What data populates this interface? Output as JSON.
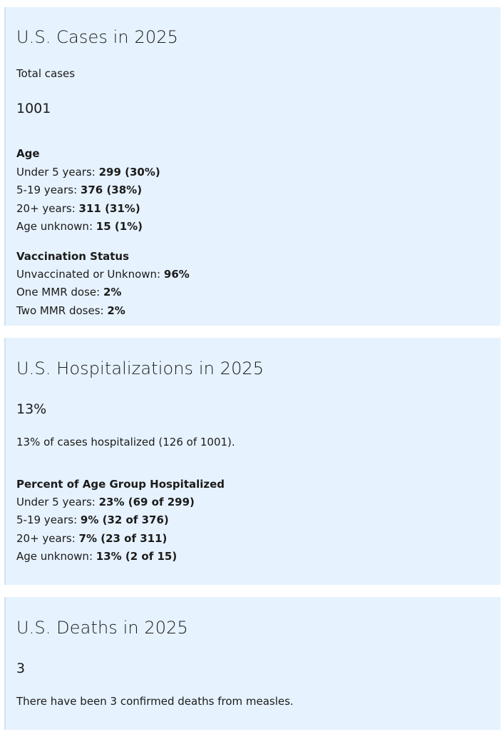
{
  "cases": {
    "title": "U.S. Cases in 2025",
    "total_label": "Total cases",
    "total_value": "1001",
    "age_heading": "Age",
    "age_rows": [
      {
        "label": "Under 5 years: ",
        "value": "299 (30%)"
      },
      {
        "label": "5-19 years: ",
        "value": "376 (38%)"
      },
      {
        "label": "20+ years: ",
        "value": "311 (31%)"
      },
      {
        "label": "Age unknown: ",
        "value": "15 (1%)"
      }
    ],
    "vacc_heading": "Vaccination Status",
    "vacc_rows": [
      {
        "label": "Unvaccinated or Unknown: ",
        "value": "96%"
      },
      {
        "label": "One MMR dose: ",
        "value": "2%"
      },
      {
        "label": "Two MMR doses: ",
        "value": "2%"
      }
    ]
  },
  "hospitalizations": {
    "title": "U.S. Hospitalizations in 2025",
    "percent": "13%",
    "summary": "13% of cases hospitalized (126 of 1001).",
    "age_heading": "Percent of Age Group Hospitalized",
    "age_rows": [
      {
        "label": "Under 5 years: ",
        "value": "23% (69 of 299)"
      },
      {
        "label": "5-19 years: ",
        "value": "9% (32 of 376)"
      },
      {
        "label": "20+ years: ",
        "value": "7% (23 of 311)"
      },
      {
        "label": "Age unknown: ",
        "value": "13% (2 of 15)"
      }
    ]
  },
  "deaths": {
    "title": "U.S. Deaths in 2025",
    "count": "3",
    "summary": "There have been 3 confirmed deaths from measles."
  }
}
